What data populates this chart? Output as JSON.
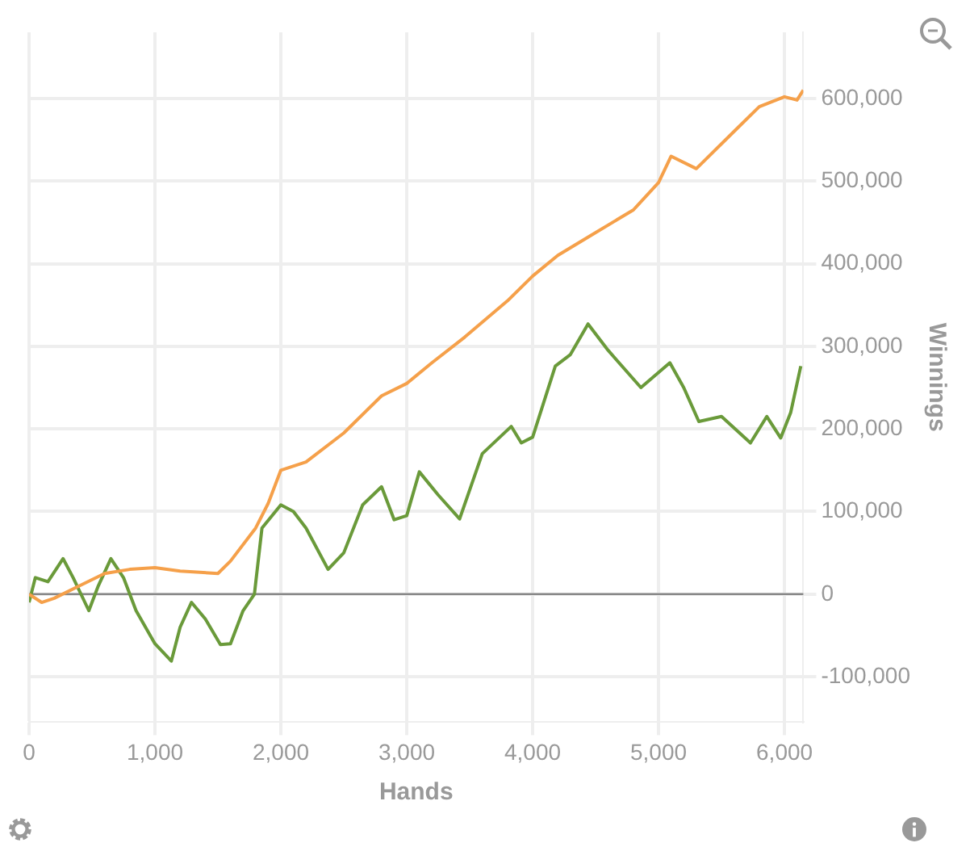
{
  "chart_data": {
    "type": "line",
    "xlabel": "Hands",
    "ylabel": "Winnings",
    "xlim": [
      0,
      6150
    ],
    "xticks": [
      {
        "value": 0,
        "label": "0"
      },
      {
        "value": 1000,
        "label": "1,000"
      },
      {
        "value": 2000,
        "label": "2,000"
      },
      {
        "value": 3000,
        "label": "3,000"
      },
      {
        "value": 4000,
        "label": "4,000"
      },
      {
        "value": 5000,
        "label": "5,000"
      },
      {
        "value": 6000,
        "label": "6,000"
      }
    ],
    "ylim": [
      -155000,
      680000
    ],
    "yticks": [
      {
        "value": -100000,
        "label": "-100,000"
      },
      {
        "value": 0,
        "label": "0"
      },
      {
        "value": 100000,
        "label": "100,000"
      },
      {
        "value": 200000,
        "label": "200,000"
      },
      {
        "value": 300000,
        "label": "300,000"
      },
      {
        "value": 400000,
        "label": "400,000"
      },
      {
        "value": 500000,
        "label": "500,000"
      },
      {
        "value": 600000,
        "label": "600,000"
      }
    ],
    "grid": true,
    "legend": false,
    "marker": "none",
    "line_style": "solid",
    "ref_lines": [
      {
        "axis": "y",
        "value": 0,
        "color": "#888888"
      }
    ],
    "series": [
      {
        "color": "#f5a04a",
        "x": [
          0,
          100,
          200,
          400,
          600,
          800,
          1000,
          1200,
          1500,
          1600,
          1800,
          1900,
          2000,
          2200,
          2500,
          2800,
          3000,
          3200,
          3460,
          3800,
          4000,
          4200,
          4450,
          4800,
          5000,
          5100,
          5300,
          5600,
          5800,
          6000,
          6100,
          6150
        ],
        "values": [
          0,
          -10000,
          -5000,
          10000,
          25000,
          30000,
          32000,
          28000,
          25000,
          40000,
          80000,
          110000,
          150000,
          160000,
          195000,
          240000,
          255000,
          280000,
          311000,
          355000,
          385000,
          410000,
          433000,
          465000,
          498000,
          530000,
          515000,
          560000,
          590000,
          602000,
          598000,
          610000
        ]
      },
      {
        "color": "#6a9a3a",
        "x": [
          0,
          50,
          150,
          270,
          350,
          475,
          550,
          650,
          750,
          850,
          1000,
          1130,
          1200,
          1290,
          1400,
          1520,
          1600,
          1700,
          1790,
          1850,
          2000,
          2100,
          2200,
          2375,
          2500,
          2650,
          2800,
          2900,
          3000,
          3100,
          3250,
          3420,
          3600,
          3830,
          3910,
          4000,
          4180,
          4300,
          4440,
          4600,
          4860,
          5090,
          5200,
          5320,
          5500,
          5730,
          5860,
          5970,
          6050,
          6130
        ],
        "values": [
          -10000,
          20000,
          15000,
          43000,
          20000,
          -20000,
          10000,
          43000,
          20000,
          -20000,
          -60000,
          -81000,
          -40000,
          -10000,
          -30000,
          -61000,
          -60000,
          -20000,
          0,
          80000,
          108000,
          100000,
          80000,
          30000,
          50000,
          108000,
          130000,
          90000,
          95000,
          148000,
          120000,
          91000,
          170000,
          203000,
          183000,
          190000,
          276000,
          290000,
          327000,
          295000,
          250000,
          280000,
          250000,
          209000,
          215000,
          183000,
          215000,
          189000,
          220000,
          276000
        ]
      }
    ]
  }
}
